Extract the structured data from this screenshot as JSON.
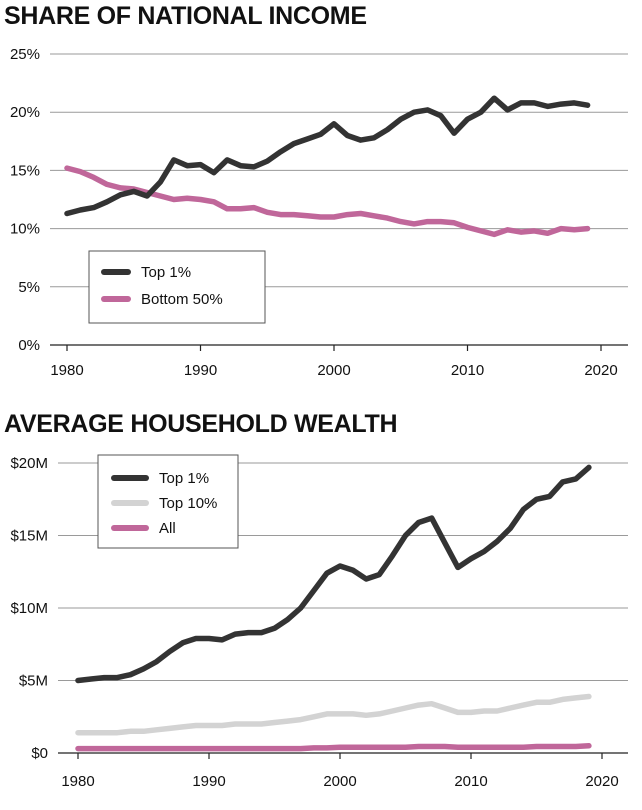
{
  "chart_data": [
    {
      "type": "line",
      "title": "SHARE OF NATIONAL INCOME",
      "xlabel": "",
      "ylabel": "",
      "xlim": [
        1980,
        2020
      ],
      "ylim": [
        0,
        25
      ],
      "x_ticks": [
        "1980",
        "1990",
        "2000",
        "2010",
        "2020"
      ],
      "y_ticks": [
        "0%",
        "5%",
        "10%",
        "15%",
        "20%",
        "25%"
      ],
      "grid": "horizontal",
      "legend_position": "lower-left",
      "x": [
        1980,
        1981,
        1982,
        1983,
        1984,
        1985,
        1986,
        1987,
        1988,
        1989,
        1990,
        1991,
        1992,
        1993,
        1994,
        1995,
        1996,
        1997,
        1998,
        1999,
        2000,
        2001,
        2002,
        2003,
        2004,
        2005,
        2006,
        2007,
        2008,
        2009,
        2010,
        2011,
        2012,
        2013,
        2014,
        2015,
        2016,
        2017,
        2018,
        2019
      ],
      "series": [
        {
          "name": "Top 1%",
          "color": "#333333",
          "values": [
            11.3,
            11.6,
            11.8,
            12.3,
            12.9,
            13.2,
            12.8,
            14.0,
            15.9,
            15.4,
            15.5,
            14.8,
            15.9,
            15.4,
            15.3,
            15.8,
            16.6,
            17.3,
            17.7,
            18.1,
            19.0,
            18.0,
            17.6,
            17.8,
            18.5,
            19.4,
            20.0,
            20.2,
            19.7,
            18.2,
            19.4,
            20.0,
            21.2,
            20.2,
            20.8,
            20.8,
            20.5,
            20.7,
            20.8,
            20.6
          ]
        },
        {
          "name": "Bottom 50%",
          "color": "#c0679a",
          "values": [
            15.2,
            14.9,
            14.4,
            13.8,
            13.5,
            13.4,
            13.1,
            12.8,
            12.5,
            12.6,
            12.5,
            12.3,
            11.7,
            11.7,
            11.8,
            11.4,
            11.2,
            11.2,
            11.1,
            11.0,
            11.0,
            11.2,
            11.3,
            11.1,
            10.9,
            10.6,
            10.4,
            10.6,
            10.6,
            10.5,
            10.1,
            9.8,
            9.5,
            9.9,
            9.7,
            9.8,
            9.6,
            10.0,
            9.9,
            10.0
          ]
        }
      ]
    },
    {
      "type": "line",
      "title": "AVERAGE HOUSEHOLD WEALTH",
      "xlabel": "",
      "ylabel": "",
      "xlim": [
        1980,
        2020
      ],
      "ylim": [
        0,
        20
      ],
      "y_unit": "millions of dollars",
      "x_ticks": [
        "1980",
        "1990",
        "2000",
        "2010",
        "2020"
      ],
      "y_ticks": [
        "$0",
        "$5M",
        "$10M",
        "$15M",
        "$20M"
      ],
      "grid": "horizontal",
      "legend_position": "top-left",
      "x": [
        1980,
        1981,
        1982,
        1983,
        1984,
        1985,
        1986,
        1987,
        1988,
        1989,
        1990,
        1991,
        1992,
        1993,
        1994,
        1995,
        1996,
        1997,
        1998,
        1999,
        2000,
        2001,
        2002,
        2003,
        2004,
        2005,
        2006,
        2007,
        2008,
        2009,
        2010,
        2011,
        2012,
        2013,
        2014,
        2015,
        2016,
        2017,
        2018,
        2019
      ],
      "series": [
        {
          "name": "Top 1%",
          "color": "#333333",
          "values": [
            5.0,
            5.1,
            5.2,
            5.2,
            5.4,
            5.8,
            6.3,
            7.0,
            7.6,
            7.9,
            7.9,
            7.8,
            8.2,
            8.3,
            8.3,
            8.6,
            9.2,
            10.0,
            11.2,
            12.4,
            12.9,
            12.6,
            12.0,
            12.3,
            13.6,
            15.0,
            15.9,
            16.2,
            14.5,
            12.8,
            13.4,
            13.9,
            14.6,
            15.5,
            16.8,
            17.5,
            17.7,
            18.7,
            18.9,
            19.7
          ]
        },
        {
          "name": "Top 10%",
          "color": "#d3d3d3",
          "values": [
            1.4,
            1.4,
            1.4,
            1.4,
            1.5,
            1.5,
            1.6,
            1.7,
            1.8,
            1.9,
            1.9,
            1.9,
            2.0,
            2.0,
            2.0,
            2.1,
            2.2,
            2.3,
            2.5,
            2.7,
            2.7,
            2.7,
            2.6,
            2.7,
            2.9,
            3.1,
            3.3,
            3.4,
            3.1,
            2.8,
            2.8,
            2.9,
            2.9,
            3.1,
            3.3,
            3.5,
            3.5,
            3.7,
            3.8,
            3.9
          ]
        },
        {
          "name": "All",
          "color": "#c0679a",
          "values": [
            0.3,
            0.3,
            0.3,
            0.3,
            0.3,
            0.3,
            0.3,
            0.3,
            0.3,
            0.3,
            0.3,
            0.3,
            0.3,
            0.3,
            0.3,
            0.3,
            0.3,
            0.3,
            0.35,
            0.35,
            0.4,
            0.4,
            0.4,
            0.4,
            0.4,
            0.4,
            0.45,
            0.45,
            0.45,
            0.4,
            0.4,
            0.4,
            0.4,
            0.4,
            0.4,
            0.45,
            0.45,
            0.45,
            0.45,
            0.5
          ]
        }
      ]
    }
  ]
}
